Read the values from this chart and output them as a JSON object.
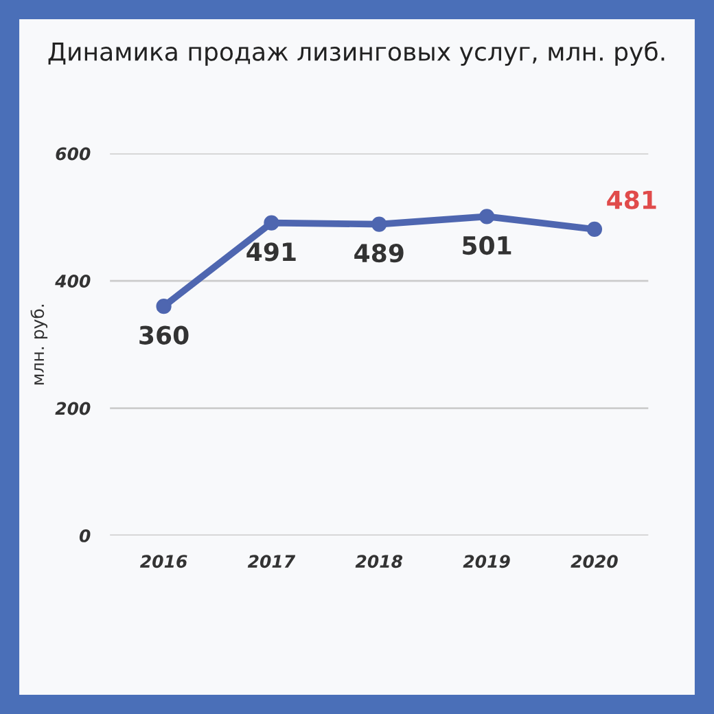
{
  "chart_data": {
    "type": "line",
    "title": "Динамика продаж лизинговых услуг, млн. руб.",
    "ylabel": "млн. руб.",
    "categories": [
      "2016",
      "2017",
      "2018",
      "2019",
      "2020"
    ],
    "series": [
      {
        "color": "#4e66b0",
        "values": [
          360,
          491,
          489,
          501,
          481
        ],
        "value_labels": [
          "360",
          "491",
          "489",
          "501",
          null
        ]
      }
    ],
    "annotations": [
      {
        "text": "481",
        "x": "2020",
        "y": 481
      }
    ],
    "ylim": [
      0,
      600
    ],
    "yticks": [
      0,
      200,
      400,
      600
    ],
    "grid": "y",
    "marker": "circle",
    "line_style": "solid"
  }
}
